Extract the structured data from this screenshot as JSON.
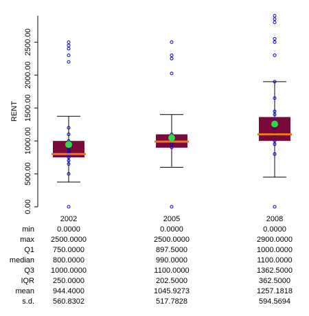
{
  "chart_data": {
    "type": "boxplot",
    "ylabel": "RENT",
    "ylim": [
      0,
      2900
    ],
    "yticks": [
      "0.00",
      "500.00",
      "1000.00",
      "1500.00",
      "2000.00",
      "2500.00"
    ],
    "categories": [
      "2002",
      "2005",
      "2008"
    ],
    "boxes": [
      {
        "category": "2002",
        "whisker_low": 375,
        "q1": 750,
        "median": 800,
        "q3": 1000,
        "whisker_high": 1375,
        "mean": 944.44,
        "points": [
          0,
          500,
          650,
          700,
          750,
          780,
          800,
          820,
          850,
          900,
          950,
          1000,
          1100,
          1200,
          2200,
          2300,
          2400,
          2450,
          2500
        ]
      },
      {
        "category": "2005",
        "whisker_low": 600,
        "q1": 897.5,
        "median": 990,
        "q3": 1100,
        "whisker_high": 1400,
        "mean": 1045.93,
        "points": [
          0,
          900,
          950,
          990,
          1000,
          1050,
          1100,
          2025,
          2250,
          2300,
          2500
        ]
      },
      {
        "category": "2008",
        "whisker_low": 450,
        "q1": 1000,
        "median": 1100,
        "q3": 1362.5,
        "whisker_high": 1900,
        "mean": 1257.18,
        "points": [
          0,
          800,
          950,
          1000,
          1100,
          1200,
          1250,
          1300,
          1400,
          1450,
          1650,
          1900,
          2300,
          2500,
          2550,
          2800,
          2850,
          2900
        ]
      }
    ],
    "colors": {
      "box": "#7a0a3c",
      "median": "#e8761f",
      "mean": "#2fd94a",
      "points": "#0000cc",
      "axis": "#000000"
    }
  },
  "stats": {
    "rows": [
      {
        "label": "min",
        "values": [
          "0.0000",
          "0.0000",
          "0.0000"
        ]
      },
      {
        "label": "max",
        "values": [
          "2500.0000",
          "2500.0000",
          "2900.0000"
        ]
      },
      {
        "label": "Q1",
        "values": [
          "750.0000",
          "897.5000",
          "1000.0000"
        ]
      },
      {
        "label": "median",
        "values": [
          "800.0000",
          "990.0000",
          "1100.0000"
        ]
      },
      {
        "label": "Q3",
        "values": [
          "1000.0000",
          "1100.0000",
          "1362.5000"
        ]
      },
      {
        "label": "IQR",
        "values": [
          "250.0000",
          "202.5000",
          "362.5000"
        ]
      },
      {
        "label": "mean",
        "values": [
          "944.4000",
          "1045.9273",
          "1257.1818"
        ]
      },
      {
        "label": "s.d.",
        "values": [
          "560.8302",
          "517.7828",
          "594.5694"
        ]
      }
    ]
  }
}
